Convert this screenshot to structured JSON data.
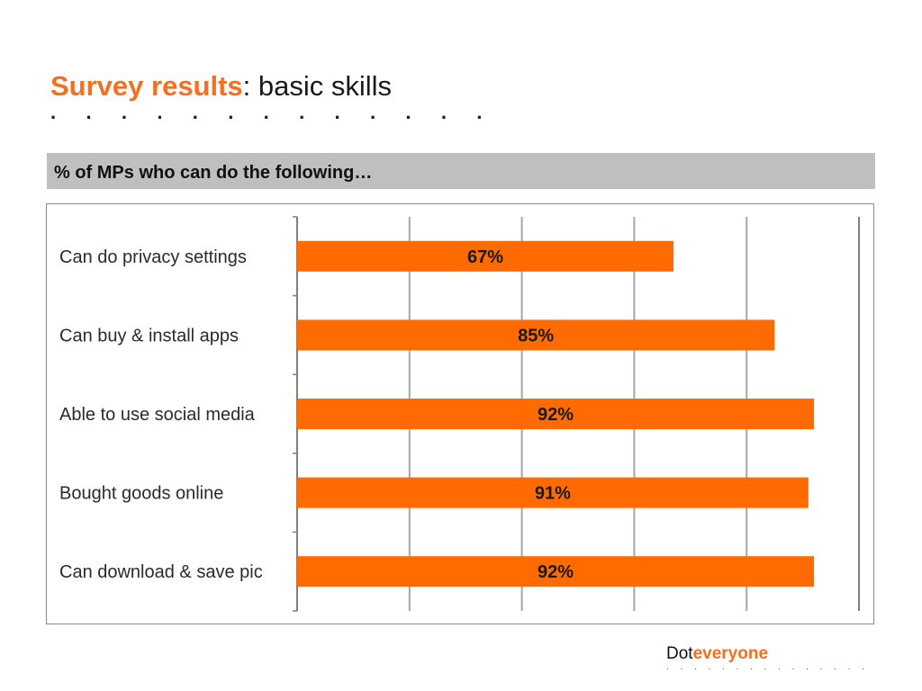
{
  "header": {
    "title_accent": "Survey results",
    "title_rest": ": basic skills",
    "title_dots": "· · · · · · · · · · · · ·"
  },
  "subtitle": {
    "text": "% of MPs who can do the following…"
  },
  "footer": {
    "logo_prefix": "Dot",
    "logo_accent": "everyone",
    "logo_dots": "· · · · · · · · · · · · · · ·"
  },
  "colors": {
    "bar": "#ff6b00",
    "accent": "#f36f21",
    "gridline": "#a6a6a6"
  },
  "chart_data": {
    "type": "bar",
    "orientation": "horizontal",
    "categories": [
      "Can do privacy settings",
      "Can buy & install apps",
      "Able to use social media",
      "Bought goods online",
      "Can download & save pic"
    ],
    "values": [
      67,
      85,
      92,
      91,
      92
    ],
    "value_labels": [
      "67%",
      "85%",
      "92%",
      "91%",
      "92%"
    ],
    "xlim": [
      0,
      100
    ],
    "grid": true,
    "legend": "none"
  }
}
